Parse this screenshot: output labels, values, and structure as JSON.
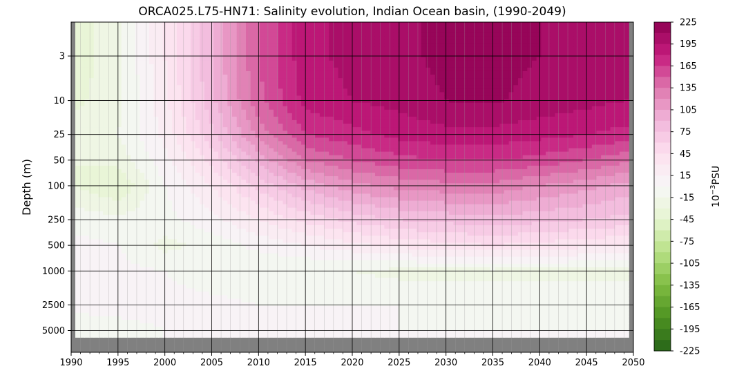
{
  "chart_data": {
    "type": "heatmap",
    "title": "ORCA025.L75-HN71: Salinity evolution, Indian Ocean basin, (1990-2049)",
    "xlabel": "",
    "ylabel": "Depth (m)",
    "x_range": [
      1990,
      2050
    ],
    "x_ticks": [
      1990,
      1995,
      2000,
      2005,
      2010,
      2015,
      2020,
      2025,
      2030,
      2035,
      2040,
      2045,
      2050
    ],
    "y_scale": "log",
    "y_inverted": true,
    "y_ticks": [
      3,
      10,
      25,
      50,
      100,
      250,
      500,
      1000,
      2500,
      5000
    ],
    "grid": true,
    "colorbar": {
      "label": "10⁻³PSU",
      "label_base": "10",
      "label_exp": "−3",
      "label_unit": "PSU",
      "range": [
        -225,
        225
      ],
      "step": 15,
      "ticks": [
        225,
        195,
        165,
        135,
        105,
        75,
        45,
        15,
        -15,
        -45,
        -75,
        -105,
        -135,
        -165,
        -195,
        -225
      ],
      "tick_labels": [
        "225",
        "195",
        "165",
        "135",
        "105",
        "75",
        "45",
        "15",
        "-15",
        "-45",
        "-75",
        "-105",
        "-135",
        "-165",
        "-195",
        "-225"
      ],
      "colormap": "PiYG_r",
      "color_low": "#276419",
      "color_mid": "#f7f7f7",
      "color_high": "#8e0152"
    },
    "no_data_color": "#808080",
    "approx_values": {
      "years": [
        1990,
        1995,
        2000,
        2005,
        2010,
        2015,
        2020,
        2025,
        2030,
        2035,
        2040,
        2045,
        2049
      ],
      "depths": [
        3,
        10,
        25,
        50,
        100,
        250,
        500,
        1000,
        2500,
        5000
      ],
      "values": [
        [
          -40,
          -20,
          30,
          90,
          150,
          190,
          200,
          205,
          215,
          215,
          210,
          205,
          200
        ],
        [
          -35,
          -20,
          25,
          85,
          145,
          185,
          195,
          200,
          210,
          212,
          205,
          200,
          195
        ],
        [
          -25,
          -15,
          20,
          70,
          125,
          165,
          175,
          185,
          190,
          190,
          185,
          180,
          175
        ],
        [
          -30,
          -25,
          10,
          50,
          95,
          135,
          150,
          160,
          165,
          165,
          160,
          150,
          140
        ],
        [
          -30,
          -45,
          0,
          30,
          65,
          95,
          115,
          125,
          130,
          130,
          120,
          110,
          100
        ],
        [
          -5,
          -10,
          -5,
          10,
          30,
          50,
          65,
          75,
          80,
          85,
          80,
          75,
          70
        ],
        [
          5,
          0,
          -20,
          -10,
          5,
          15,
          25,
          35,
          40,
          45,
          40,
          35,
          30
        ],
        [
          5,
          5,
          0,
          -10,
          -15,
          -15,
          -15,
          -20,
          -20,
          -20,
          -20,
          -20,
          -20
        ],
        [
          5,
          5,
          5,
          5,
          0,
          0,
          0,
          0,
          -5,
          -5,
          -5,
          -5,
          -5
        ],
        [
          -10,
          -5,
          0,
          0,
          0,
          0,
          0,
          0,
          0,
          0,
          0,
          0,
          0
        ]
      ]
    }
  }
}
